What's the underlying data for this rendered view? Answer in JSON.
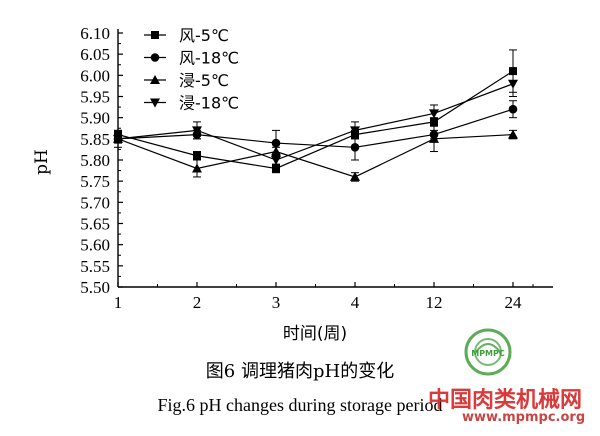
{
  "chart_data": {
    "type": "line",
    "categories": [
      "1",
      "2",
      "3",
      "4",
      "12",
      "24"
    ],
    "ylabel": "pH",
    "xlabel": "时间(周)",
    "ylim": [
      5.5,
      6.1
    ],
    "yticks": [
      "5.50",
      "5.55",
      "5.60",
      "5.65",
      "5.70",
      "5.75",
      "5.80",
      "5.85",
      "5.90",
      "5.95",
      "6.00",
      "6.05",
      "6.10"
    ],
    "legend_position": "top-left",
    "grid": false,
    "series": [
      {
        "name": "风-5℃",
        "marker": "square",
        "values": [
          5.86,
          5.81,
          5.78,
          5.86,
          5.89,
          6.01
        ],
        "errors": [
          0.01,
          0.01,
          0.01,
          0.01,
          0.01,
          0.05
        ]
      },
      {
        "name": "风-18℃",
        "marker": "circle",
        "values": [
          5.85,
          5.86,
          5.84,
          5.83,
          5.86,
          5.92
        ],
        "errors": [
          0.01,
          0.01,
          0.03,
          0.03,
          0.01,
          0.02
        ]
      },
      {
        "name": "浸-5℃",
        "marker": "triangle-up",
        "values": [
          5.85,
          5.78,
          5.82,
          5.76,
          5.85,
          5.86
        ],
        "errors": [
          0.02,
          0.02,
          0.01,
          0.01,
          0.03,
          0.01
        ]
      },
      {
        "name": "浸-18℃",
        "marker": "triangle-down",
        "values": [
          5.85,
          5.87,
          5.8,
          5.87,
          5.91,
          5.98
        ],
        "errors": [
          0.01,
          0.02,
          0.01,
          0.02,
          0.02,
          0.03
        ]
      }
    ]
  },
  "caption_cn": "图6   调理猪肉pH的变化",
  "caption_en": "Fig.6   pH changes during storage period",
  "watermark": {
    "logo_text": "MPMPC",
    "site_name": "中国肉类机械网",
    "url": "www.mpmpc.org"
  }
}
